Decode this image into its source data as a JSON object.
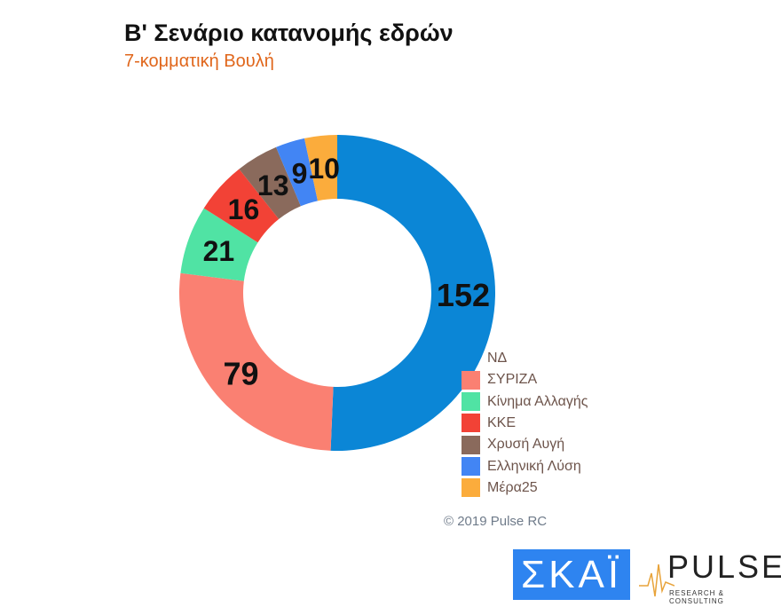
{
  "chart_data": {
    "type": "pie",
    "title": "Β' Σενάριο κατανομής εδρών",
    "subtitle": "7-κομματική Βουλή",
    "donut": true,
    "legend_position": "right-bottom",
    "series": [
      {
        "name": "ΝΔ",
        "value": 152,
        "color": "#0b86d6"
      },
      {
        "name": "ΣΥΡΙΖΑ",
        "value": 79,
        "color": "#fa8072"
      },
      {
        "name": "Κίνημα Αλλαγής",
        "value": 21,
        "color": "#50e3a4"
      },
      {
        "name": "ΚΚΕ",
        "value": 16,
        "color": "#f24236"
      },
      {
        "name": "Χρυσή Αυγή",
        "value": 13,
        "color": "#8a6a5c"
      },
      {
        "name": "Ελληνική Λύση",
        "value": 9,
        "color": "#4285f4"
      },
      {
        "name": "Μέρα25",
        "value": 10,
        "color": "#fbac3c"
      }
    ]
  },
  "copyright": "© 2019 Pulse RC",
  "logos": {
    "skai": "ΣΚΑΪ",
    "pulse": "PULSE",
    "pulse_tagline": "RESEARCH & CONSULTING"
  }
}
